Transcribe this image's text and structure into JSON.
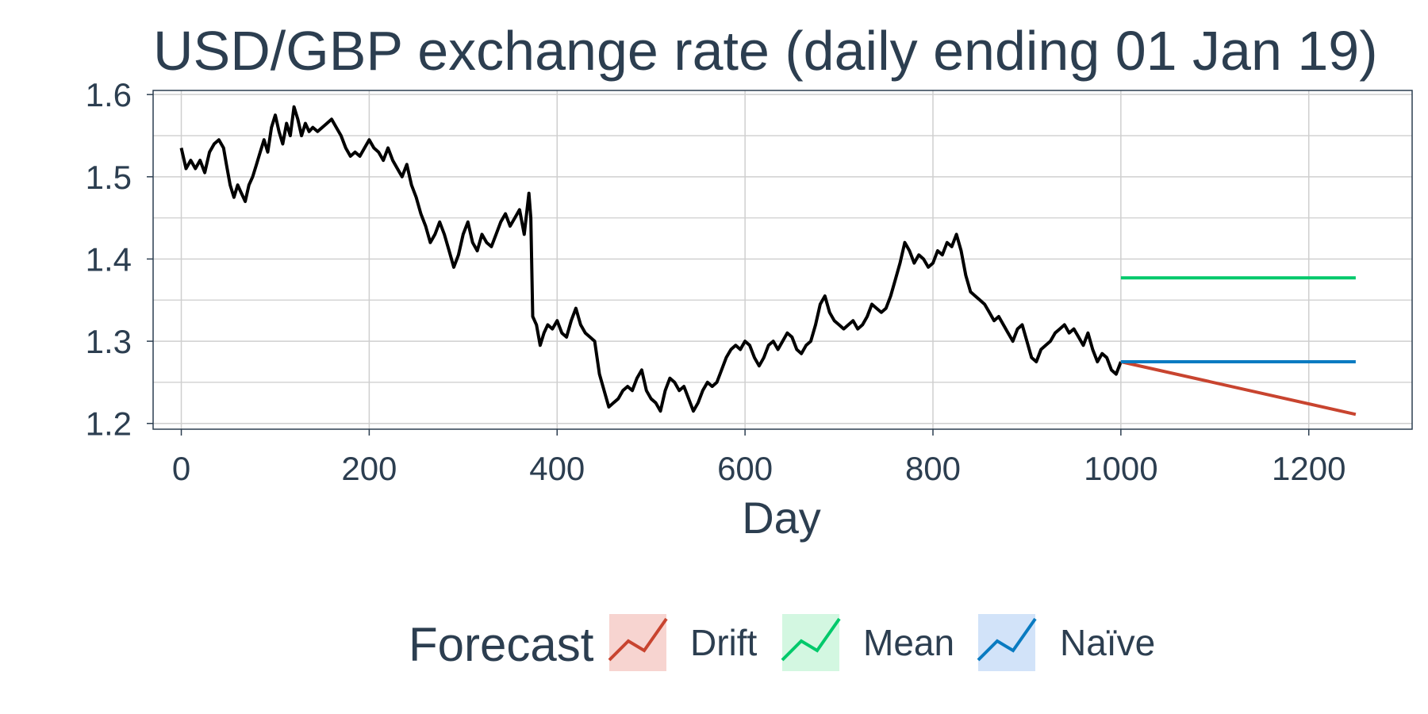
{
  "chart_data": {
    "type": "line",
    "title": "USD/GBP exchange rate (daily ending 01 Jan 19)",
    "xlabel": "Day",
    "ylabel": "",
    "xlim": [
      -30,
      1310
    ],
    "ylim": [
      1.193,
      1.605
    ],
    "x_ticks": [
      0,
      200,
      400,
      600,
      800,
      1000,
      1200
    ],
    "y_ticks": [
      1.2,
      1.3,
      1.4,
      1.5,
      1.6
    ],
    "x_tick_labels": [
      "0",
      "200",
      "400",
      "600",
      "800",
      "1000",
      "1200"
    ],
    "y_tick_labels": [
      "1.2",
      "1.3",
      "1.4",
      "1.5",
      "1.6"
    ],
    "grid": true,
    "observed": {
      "color": "#000000",
      "points": [
        [
          0,
          1.535
        ],
        [
          5,
          1.51
        ],
        [
          10,
          1.52
        ],
        [
          15,
          1.51
        ],
        [
          20,
          1.52
        ],
        [
          25,
          1.505
        ],
        [
          30,
          1.53
        ],
        [
          35,
          1.54
        ],
        [
          40,
          1.545
        ],
        [
          45,
          1.535
        ],
        [
          48,
          1.515
        ],
        [
          52,
          1.49
        ],
        [
          56,
          1.475
        ],
        [
          60,
          1.49
        ],
        [
          64,
          1.48
        ],
        [
          68,
          1.47
        ],
        [
          72,
          1.49
        ],
        [
          76,
          1.5
        ],
        [
          80,
          1.515
        ],
        [
          84,
          1.53
        ],
        [
          88,
          1.545
        ],
        [
          92,
          1.53
        ],
        [
          96,
          1.56
        ],
        [
          100,
          1.575
        ],
        [
          104,
          1.555
        ],
        [
          108,
          1.54
        ],
        [
          112,
          1.565
        ],
        [
          116,
          1.55
        ],
        [
          120,
          1.585
        ],
        [
          124,
          1.57
        ],
        [
          128,
          1.55
        ],
        [
          132,
          1.565
        ],
        [
          136,
          1.555
        ],
        [
          140,
          1.56
        ],
        [
          145,
          1.555
        ],
        [
          150,
          1.56
        ],
        [
          155,
          1.565
        ],
        [
          160,
          1.57
        ],
        [
          165,
          1.56
        ],
        [
          170,
          1.55
        ],
        [
          175,
          1.535
        ],
        [
          180,
          1.525
        ],
        [
          185,
          1.53
        ],
        [
          190,
          1.525
        ],
        [
          195,
          1.535
        ],
        [
          200,
          1.545
        ],
        [
          205,
          1.535
        ],
        [
          210,
          1.53
        ],
        [
          215,
          1.52
        ],
        [
          220,
          1.535
        ],
        [
          225,
          1.52
        ],
        [
          230,
          1.51
        ],
        [
          235,
          1.5
        ],
        [
          240,
          1.515
        ],
        [
          245,
          1.49
        ],
        [
          250,
          1.475
        ],
        [
          255,
          1.455
        ],
        [
          260,
          1.44
        ],
        [
          265,
          1.42
        ],
        [
          270,
          1.43
        ],
        [
          275,
          1.445
        ],
        [
          280,
          1.43
        ],
        [
          285,
          1.41
        ],
        [
          290,
          1.39
        ],
        [
          295,
          1.405
        ],
        [
          300,
          1.43
        ],
        [
          305,
          1.445
        ],
        [
          310,
          1.42
        ],
        [
          315,
          1.41
        ],
        [
          320,
          1.43
        ],
        [
          325,
          1.42
        ],
        [
          330,
          1.415
        ],
        [
          335,
          1.43
        ],
        [
          340,
          1.445
        ],
        [
          345,
          1.455
        ],
        [
          350,
          1.44
        ],
        [
          355,
          1.45
        ],
        [
          360,
          1.46
        ],
        [
          365,
          1.43
        ],
        [
          370,
          1.48
        ],
        [
          372,
          1.45
        ],
        [
          374,
          1.33
        ],
        [
          378,
          1.32
        ],
        [
          382,
          1.295
        ],
        [
          386,
          1.31
        ],
        [
          390,
          1.32
        ],
        [
          395,
          1.315
        ],
        [
          400,
          1.325
        ],
        [
          405,
          1.31
        ],
        [
          410,
          1.305
        ],
        [
          415,
          1.325
        ],
        [
          420,
          1.34
        ],
        [
          425,
          1.32
        ],
        [
          430,
          1.31
        ],
        [
          435,
          1.305
        ],
        [
          440,
          1.3
        ],
        [
          445,
          1.26
        ],
        [
          450,
          1.24
        ],
        [
          455,
          1.22
        ],
        [
          460,
          1.225
        ],
        [
          465,
          1.23
        ],
        [
          470,
          1.24
        ],
        [
          475,
          1.245
        ],
        [
          480,
          1.24
        ],
        [
          485,
          1.255
        ],
        [
          490,
          1.265
        ],
        [
          495,
          1.24
        ],
        [
          500,
          1.23
        ],
        [
          505,
          1.225
        ],
        [
          510,
          1.215
        ],
        [
          515,
          1.24
        ],
        [
          520,
          1.255
        ],
        [
          525,
          1.25
        ],
        [
          530,
          1.24
        ],
        [
          535,
          1.245
        ],
        [
          540,
          1.23
        ],
        [
          545,
          1.215
        ],
        [
          550,
          1.225
        ],
        [
          555,
          1.24
        ],
        [
          560,
          1.25
        ],
        [
          565,
          1.245
        ],
        [
          570,
          1.25
        ],
        [
          575,
          1.265
        ],
        [
          580,
          1.28
        ],
        [
          585,
          1.29
        ],
        [
          590,
          1.295
        ],
        [
          595,
          1.29
        ],
        [
          600,
          1.3
        ],
        [
          605,
          1.295
        ],
        [
          610,
          1.28
        ],
        [
          615,
          1.27
        ],
        [
          620,
          1.28
        ],
        [
          625,
          1.295
        ],
        [
          630,
          1.3
        ],
        [
          635,
          1.29
        ],
        [
          640,
          1.3
        ],
        [
          645,
          1.31
        ],
        [
          650,
          1.305
        ],
        [
          655,
          1.29
        ],
        [
          660,
          1.285
        ],
        [
          665,
          1.295
        ],
        [
          670,
          1.3
        ],
        [
          675,
          1.32
        ],
        [
          680,
          1.345
        ],
        [
          685,
          1.355
        ],
        [
          690,
          1.335
        ],
        [
          695,
          1.325
        ],
        [
          700,
          1.32
        ],
        [
          705,
          1.315
        ],
        [
          710,
          1.32
        ],
        [
          715,
          1.325
        ],
        [
          720,
          1.315
        ],
        [
          725,
          1.32
        ],
        [
          730,
          1.33
        ],
        [
          735,
          1.345
        ],
        [
          740,
          1.34
        ],
        [
          745,
          1.335
        ],
        [
          750,
          1.34
        ],
        [
          755,
          1.355
        ],
        [
          760,
          1.375
        ],
        [
          765,
          1.395
        ],
        [
          770,
          1.42
        ],
        [
          775,
          1.41
        ],
        [
          780,
          1.395
        ],
        [
          785,
          1.405
        ],
        [
          790,
          1.4
        ],
        [
          795,
          1.39
        ],
        [
          800,
          1.395
        ],
        [
          805,
          1.41
        ],
        [
          810,
          1.405
        ],
        [
          815,
          1.42
        ],
        [
          820,
          1.415
        ],
        [
          825,
          1.43
        ],
        [
          830,
          1.41
        ],
        [
          835,
          1.38
        ],
        [
          840,
          1.36
        ],
        [
          845,
          1.355
        ],
        [
          850,
          1.35
        ],
        [
          855,
          1.345
        ],
        [
          860,
          1.335
        ],
        [
          865,
          1.325
        ],
        [
          870,
          1.33
        ],
        [
          875,
          1.32
        ],
        [
          880,
          1.31
        ],
        [
          885,
          1.3
        ],
        [
          890,
          1.315
        ],
        [
          895,
          1.32
        ],
        [
          900,
          1.3
        ],
        [
          905,
          1.28
        ],
        [
          910,
          1.275
        ],
        [
          915,
          1.29
        ],
        [
          920,
          1.295
        ],
        [
          925,
          1.3
        ],
        [
          930,
          1.31
        ],
        [
          935,
          1.315
        ],
        [
          940,
          1.32
        ],
        [
          945,
          1.31
        ],
        [
          950,
          1.315
        ],
        [
          955,
          1.305
        ],
        [
          960,
          1.295
        ],
        [
          965,
          1.31
        ],
        [
          970,
          1.29
        ],
        [
          975,
          1.275
        ],
        [
          980,
          1.285
        ],
        [
          985,
          1.28
        ],
        [
          990,
          1.265
        ],
        [
          995,
          1.26
        ],
        [
          1000,
          1.275
        ]
      ]
    },
    "series": [
      {
        "name": "Drift",
        "color": "#c8442f",
        "swatch": "#f7d4d0",
        "x": [
          1000,
          1250
        ],
        "values": [
          1.275,
          1.211
        ]
      },
      {
        "name": "Mean",
        "color": "#00c96b",
        "swatch": "#d3f7e1",
        "x": [
          1000,
          1250
        ],
        "values": [
          1.377,
          1.377
        ]
      },
      {
        "name": "Naïve",
        "color": "#0a7bc1",
        "swatch": "#d2e3f9",
        "x": [
          1000,
          1250
        ],
        "values": [
          1.275,
          1.275
        ]
      }
    ],
    "legend": {
      "title": "Forecast",
      "placement": "bottom"
    }
  }
}
